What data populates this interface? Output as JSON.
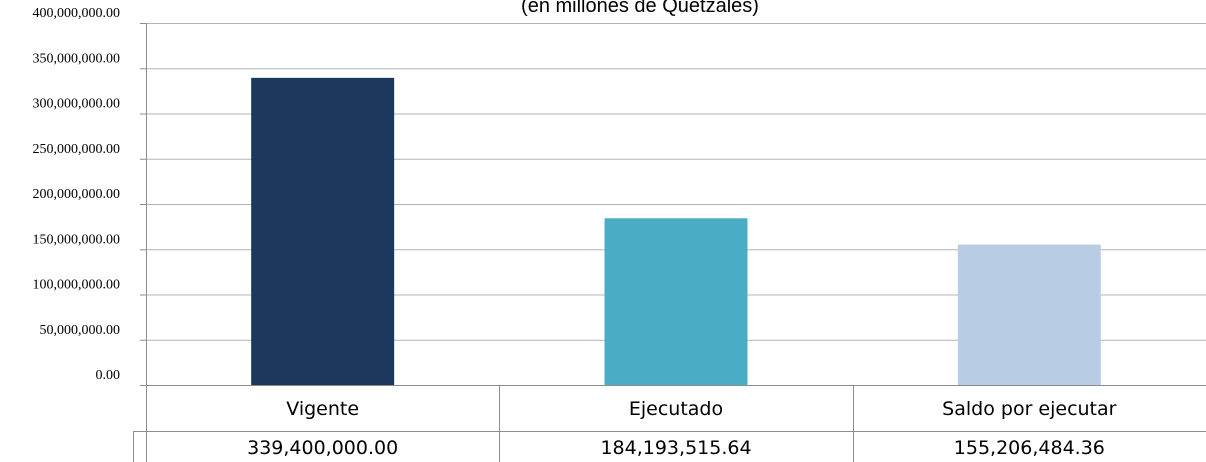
{
  "chart_data": {
    "type": "bar",
    "title": "(en millones de Quetzales)",
    "categories": [
      "Vigente",
      "Ejecutado",
      "Saldo por ejecutar"
    ],
    "values": [
      339400000.0,
      184193515.64,
      155206484.36
    ],
    "value_labels": [
      "339,400,000.00",
      "184,193,515.64",
      "155,206,484.36"
    ],
    "ylim": [
      0,
      400000000
    ],
    "yticks": [
      0,
      50000000,
      100000000,
      150000000,
      200000000,
      250000000,
      300000000,
      350000000,
      400000000
    ],
    "ytick_labels": [
      "0.00",
      "50,000,000.00",
      "100,000,000.00",
      "150,000,000.00",
      "200,000,000.00",
      "250,000,000.00",
      "300,000,000.00",
      "350,000,000.00",
      "400,000,000.00"
    ],
    "colors": [
      "#1c385d",
      "#4bacc6",
      "#b8cce4"
    ],
    "grid": true,
    "data_table": true
  }
}
